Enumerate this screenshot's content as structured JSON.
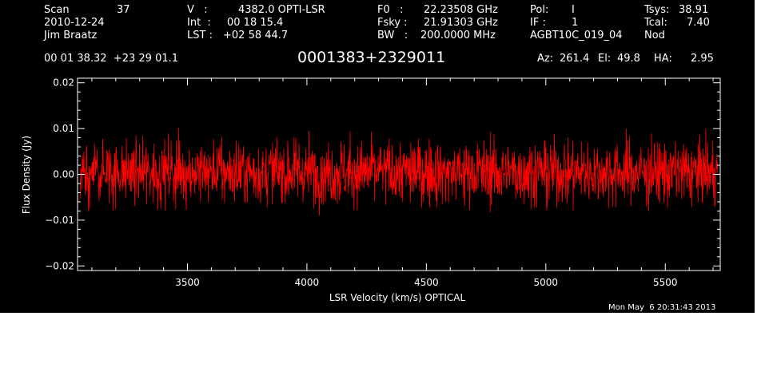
{
  "header": {
    "scan_label": "Scan",
    "scan_value": "37",
    "date": "2010-12-24",
    "observer": "Jim Braatz",
    "v_label": "V   :",
    "v_value": "4382.0 OPTI-LSR",
    "int_label": "Int  :",
    "int_value": "00 18 15.4",
    "lst_label": "LST :",
    "lst_value": "+02 58 44.7",
    "f0_label": "F0   :",
    "f0_value": "22.23508 GHz",
    "fsky_label": "Fsky :",
    "fsky_value": "21.91303 GHz",
    "bw_label": "BW   :",
    "bw_value": "200.0000 MHz",
    "pol_label": "Pol:",
    "pol_value": "I",
    "if_label": "IF :",
    "if_value": "1",
    "project": "AGBT10C_019_04",
    "tsys_label": "Tsys:",
    "tsys_value": "38.91",
    "tcal_label": "Tcal:",
    "tcal_value": "7.40",
    "proc": "Nod",
    "coords": "00 01 38.32  +23 29 01.1",
    "source": "0001383+2329011",
    "az_label": "Az:",
    "az_value": "261.4",
    "el_label": "El:",
    "el_value": "49.8",
    "ha_label": "HA:",
    "ha_value": "2.95",
    "timestamp": "Mon May  6 20:31:43 2013"
  },
  "chart_data": {
    "type": "line",
    "xlabel": "LSR Velocity (km/s) OPTICAL",
    "ylabel": "Flux Density (Jy)",
    "xlim": [
      3040,
      5730
    ],
    "ylim": [
      -0.021,
      0.021
    ],
    "xticks": [
      3500,
      4000,
      4500,
      5000,
      5500
    ],
    "xtick_labels": [
      "3500",
      "4000",
      "4500",
      "5000",
      "5500"
    ],
    "yticks": [
      -0.02,
      -0.01,
      0.0,
      0.01,
      0.02
    ],
    "ytick_labels": [
      "−0.02",
      "−0.01",
      "0.00",
      "0.01",
      "0.02"
    ],
    "series": [
      {
        "color": "#ff0000",
        "x_start": 3050,
        "x_end": 5720,
        "noise_rms": 0.0035,
        "mean": 0.0005,
        "n_points": 1800,
        "min": -0.012,
        "max": 0.016
      }
    ],
    "grid": false
  },
  "colors": {
    "background": "#000000",
    "foreground": "#ffffff",
    "trace": "#ff0000"
  }
}
